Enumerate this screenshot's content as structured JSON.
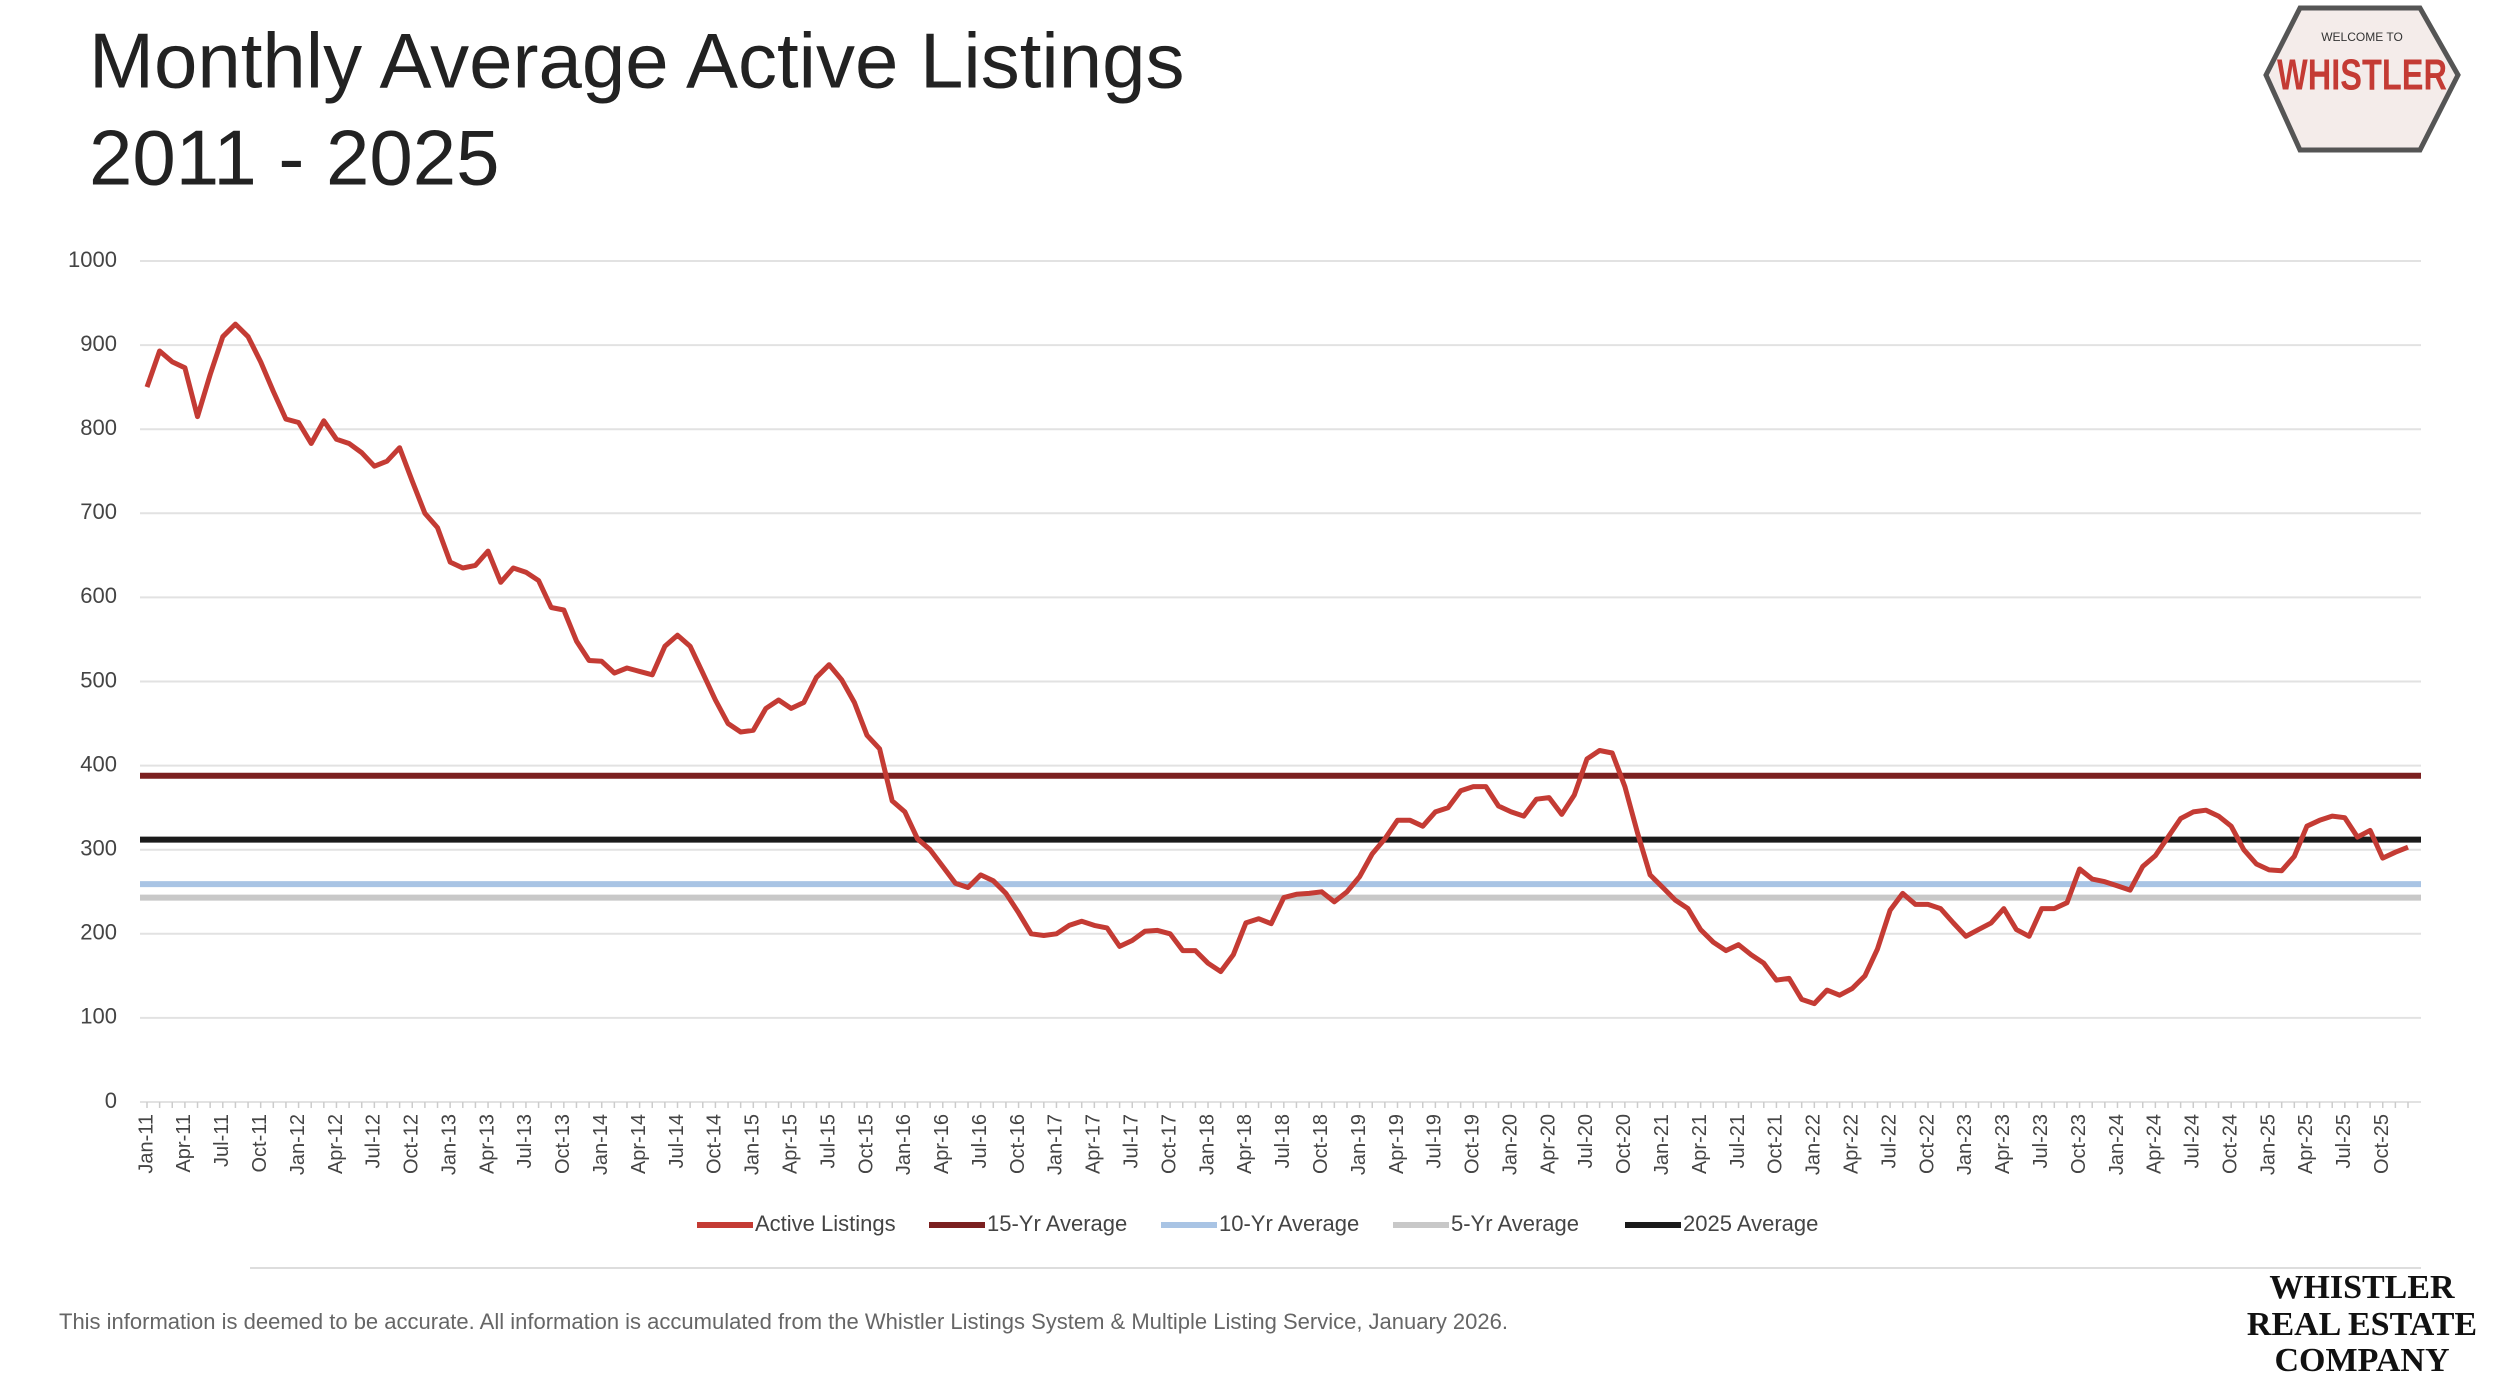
{
  "chart_data": {
    "type": "line",
    "title_lines": [
      "Monthly Average Active Listings",
      "2011 - 2025"
    ],
    "categories": [
      "Jan-11",
      null,
      null,
      "Apr-11",
      null,
      null,
      "Jul-11",
      null,
      null,
      "Oct-11",
      null,
      null,
      "Jan-12",
      null,
      null,
      "Apr-12",
      null,
      null,
      "Jul-12",
      null,
      null,
      "Oct-12",
      null,
      null,
      "Jan-13",
      null,
      null,
      "Apr-13",
      null,
      null,
      "Jul-13",
      null,
      null,
      "Oct-13",
      null,
      null,
      "Jan-14",
      null,
      null,
      "Apr-14",
      null,
      null,
      "Jul-14",
      null,
      null,
      "Oct-14",
      null,
      null,
      "Jan-15",
      null,
      null,
      "Apr-15",
      null,
      null,
      "Jul-15",
      null,
      null,
      "Oct-15",
      null,
      null,
      "Jan-16",
      null,
      null,
      "Apr-16",
      null,
      null,
      "Jul-16",
      null,
      null,
      "Oct-16",
      null,
      null,
      "Jan-17",
      null,
      null,
      "Apr-17",
      null,
      null,
      "Jul-17",
      null,
      null,
      "Oct-17",
      null,
      null,
      "Jan-18",
      null,
      null,
      "Apr-18",
      null,
      null,
      "Jul-18",
      null,
      null,
      "Oct-18",
      null,
      null,
      "Jan-19",
      null,
      null,
      "Apr-19",
      null,
      null,
      "Jul-19",
      null,
      null,
      "Oct-19",
      null,
      null,
      "Jan-20",
      null,
      null,
      "Apr-20",
      null,
      null,
      "Jul-20",
      null,
      null,
      "Oct-20",
      null,
      null,
      "Jan-21",
      null,
      null,
      "Apr-21",
      null,
      null,
      "Jul-21",
      null,
      null,
      "Oct-21",
      null,
      null,
      "Jan-22",
      null,
      null,
      "Apr-22",
      null,
      null,
      "Jul-22",
      null,
      null,
      "Oct-22",
      null,
      null,
      "Jan-23",
      null,
      null,
      "Apr-23",
      null,
      null,
      "Jul-23",
      null,
      null,
      "Oct-23",
      null,
      null,
      "Jan-24",
      null,
      null,
      "Apr-24",
      null,
      null,
      "Jul-24",
      null,
      null,
      "Oct-24",
      null,
      null,
      "Jan-25",
      null,
      null,
      "Apr-25",
      null,
      null,
      "Jul-25",
      null,
      null,
      "Oct-25",
      null,
      null
    ],
    "series": [
      {
        "name": "Active Listings",
        "color": "#c43b34",
        "values": [
          850,
          893,
          880,
          873,
          815,
          865,
          910,
          925,
          910,
          880,
          845,
          812,
          808,
          783,
          810,
          788,
          783,
          772,
          756,
          762,
          778,
          738,
          700,
          683,
          642,
          635,
          638,
          655,
          618,
          635,
          630,
          620,
          588,
          585,
          548,
          525,
          524,
          510,
          516,
          512,
          508,
          542,
          555,
          542,
          510,
          478,
          450,
          440,
          442,
          468,
          478,
          468,
          475,
          505,
          520,
          502,
          475,
          436,
          420,
          358,
          345,
          313,
          300,
          280,
          260,
          255,
          270,
          263,
          248,
          225,
          200,
          198,
          200,
          210,
          215,
          210,
          207,
          185,
          192,
          203,
          204,
          200,
          180,
          180,
          165,
          155,
          175,
          213,
          218,
          212,
          243,
          247,
          248,
          250,
          238,
          250,
          268,
          295,
          313,
          335,
          335,
          328,
          345,
          350,
          370,
          375,
          375,
          352,
          345,
          340,
          360,
          362,
          342,
          365,
          408,
          418,
          415,
          375,
          320,
          270,
          255,
          240,
          230,
          205,
          190,
          180,
          187,
          175,
          165,
          145,
          147,
          122,
          117,
          133,
          127,
          135,
          150,
          182,
          228,
          248,
          235,
          235,
          230,
          213,
          197,
          205,
          213,
          230,
          205,
          197,
          230,
          230,
          237,
          277,
          265,
          262,
          257,
          252,
          280,
          293,
          315,
          337,
          345,
          347,
          340,
          328,
          300,
          283,
          276,
          275,
          292,
          328,
          335,
          340,
          338,
          315,
          323,
          290,
          297,
          303
        ]
      }
    ],
    "hlines": [
      {
        "name": "15-Yr Average",
        "color": "#7b2020",
        "value": 388
      },
      {
        "name": "10-Yr Average",
        "color": "#a9c4e4",
        "value": 259
      },
      {
        "name": "5-Yr Average",
        "color": "#c8c8c8",
        "value": 243
      },
      {
        "name": "2025 Average",
        "color": "#1a1a1a",
        "value": 312
      }
    ],
    "ylim": [
      0,
      1000
    ],
    "yticks": [
      0,
      100,
      200,
      300,
      400,
      500,
      600,
      700,
      800,
      900,
      1000
    ],
    "grid": true,
    "footnote": "This information is deemed to be accurate. All information is accumulated from the Whistler Listings System & Multiple Listing Service, January 2026.",
    "logo": {
      "small": "WELCOME TO",
      "name": "WHISTLER"
    },
    "brand_lines": [
      "WHISTLER",
      "REAL ESTATE",
      "COMPANY"
    ]
  }
}
